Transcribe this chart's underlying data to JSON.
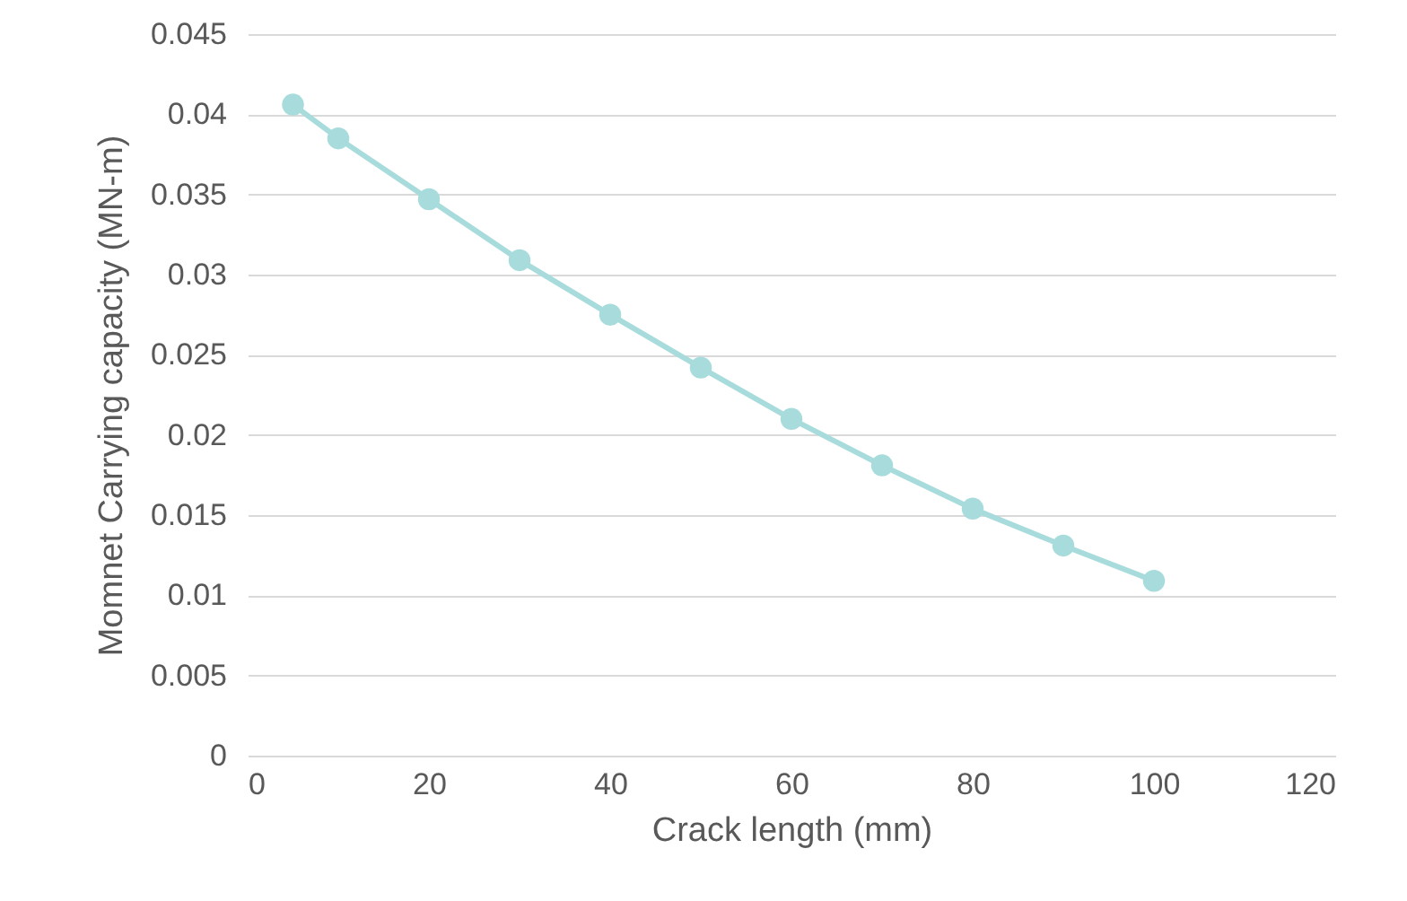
{
  "chart_data": {
    "type": "line",
    "xlabel": "Crack length (mm)",
    "ylabel": "Momnet Carrying capacity (MN-m)",
    "x": [
      5,
      10,
      20,
      30,
      40,
      50,
      60,
      70,
      80,
      90,
      100
    ],
    "series": [
      {
        "color": "#a8dcdc",
        "values": [
          0.0406,
          0.0385,
          0.0347,
          0.0309,
          0.0275,
          0.0242,
          0.021,
          0.0181,
          0.0154,
          0.0131,
          0.0109
        ]
      }
    ],
    "xlim": [
      0,
      120
    ],
    "xticks": [
      0,
      20,
      40,
      60,
      80,
      100,
      120
    ],
    "ylim": [
      0,
      0.045
    ],
    "yticks": [
      0,
      0.005,
      0.01,
      0.015,
      0.02,
      0.025,
      0.03,
      0.035,
      0.04,
      0.045
    ],
    "grid": "y",
    "marker": "circle",
    "line_style": "solid"
  }
}
